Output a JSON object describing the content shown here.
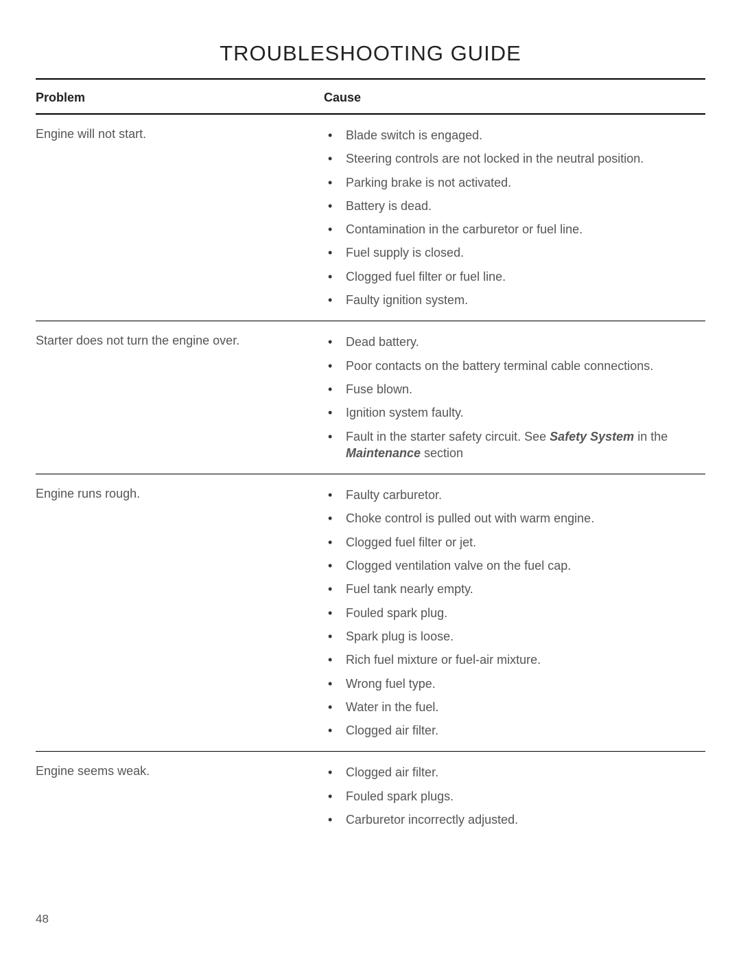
{
  "title": "TROUBLESHOOTING GUIDE",
  "colors": {
    "text_primary": "#222222",
    "text_body": "#555555",
    "rule": "#000000",
    "background": "#ffffff"
  },
  "typography": {
    "title_fontsize": 31,
    "header_fontsize": 18,
    "body_fontsize": 18,
    "page_number_fontsize": 17
  },
  "headers": {
    "problem": "Problem",
    "cause": "Cause"
  },
  "rows": [
    {
      "problem": "Engine will not start.",
      "causes": [
        "Blade switch is engaged.",
        "Steering controls are not locked in the neutral position.",
        "Parking brake is not activated.",
        "Battery is dead.",
        "Contamination in the carburetor or fuel line.",
        "Fuel supply is closed.",
        "Clogged fuel filter or fuel line.",
        "Faulty ignition system."
      ]
    },
    {
      "problem": "Starter does not turn the engine over.",
      "causes": [
        "Dead battery.",
        "Poor contacts on the battery terminal cable connections.",
        "Fuse blown.",
        "Ignition system faulty."
      ],
      "special_cause": {
        "prefix": "Fault in the starter safety circuit. See ",
        "ref1": "Safety System",
        "mid": " in the ",
        "ref2": "Maintenance",
        "suffix": " section"
      }
    },
    {
      "problem": "Engine runs rough.",
      "causes": [
        "Faulty carburetor.",
        "Choke control is pulled out with warm engine.",
        "Clogged fuel filter or jet.",
        "Clogged ventilation valve on the fuel cap.",
        "Fuel tank nearly empty.",
        "Fouled spark plug.",
        "Spark plug is loose.",
        "Rich fuel mixture or fuel-air mixture.",
        "Wrong fuel type.",
        "Water in the fuel.",
        "Clogged air filter."
      ]
    },
    {
      "problem": "Engine seems weak.",
      "causes": [
        "Clogged air filter.",
        "Fouled spark plugs.",
        "Carburetor incorrectly adjusted."
      ],
      "no_border": true
    }
  ],
  "page_number": "48"
}
